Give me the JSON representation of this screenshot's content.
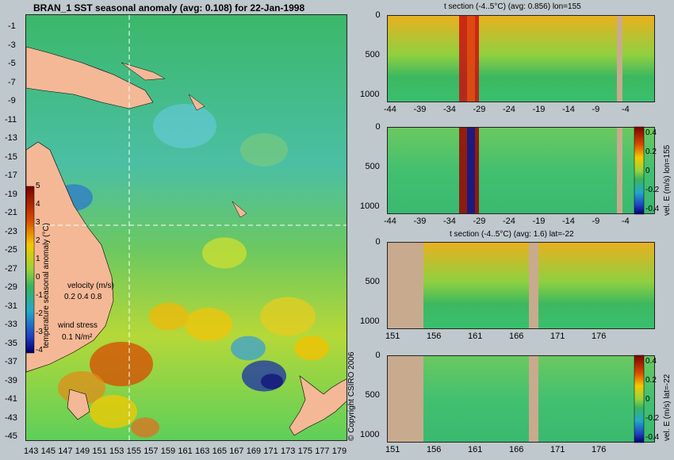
{
  "chart_data": [
    {
      "type": "heatmap",
      "title": "BRAN_1 SST seasonal anomaly (avg: 0.108) for 22-Jan-1998",
      "y_ticks": [
        "-1",
        "-3",
        "-5",
        "-7",
        "-9",
        "-11",
        "-13",
        "-15",
        "-17",
        "-19",
        "-21",
        "-23",
        "-25",
        "-27",
        "-29",
        "-31",
        "-33",
        "-35",
        "-37",
        "-39",
        "-41",
        "-43",
        "-45"
      ],
      "x_ticks": [
        "143",
        "145",
        "147",
        "149",
        "151",
        "153",
        "155",
        "157",
        "159",
        "161",
        "163",
        "165",
        "167",
        "169",
        "171",
        "173",
        "175",
        "177",
        "179"
      ],
      "xlim": [
        143,
        180
      ],
      "ylim": [
        -45,
        0
      ],
      "colorbar": {
        "label": "temperature seasonal anomaly (°C)",
        "ticks": [
          "5",
          "4",
          "3",
          "2",
          "1",
          "0",
          "-1",
          "-2",
          "-3",
          "-4"
        ],
        "range": [
          -4,
          5
        ]
      },
      "velocity_legend": {
        "label": "velocity (m/s)",
        "values": "0.2 0.4 0.8"
      },
      "wind_legend": {
        "label": "wind stress",
        "value": "0.1 N/m²"
      },
      "section_lines": {
        "lon": 155,
        "lat": -22
      }
    },
    {
      "type": "heatmap",
      "title": "t section (-4..5°C) (avg: 0.856) lon=155",
      "x_ticks": [
        "-44",
        "-39",
        "-34",
        "-29",
        "-24",
        "-19",
        "-14",
        "-9",
        "-4"
      ],
      "y_ticks": [
        "0",
        "500",
        "1000"
      ]
    },
    {
      "type": "heatmap",
      "title": "",
      "side_label": "vel. E (m/s) lon=155",
      "x_ticks": [
        "-44",
        "-39",
        "-34",
        "-29",
        "-24",
        "-19",
        "-14",
        "-9",
        "-4"
      ],
      "y_ticks": [
        "0",
        "500",
        "1000"
      ],
      "colorbar_ticks": [
        "0.4",
        "0.2",
        "0",
        "-0.2",
        "-0.4"
      ]
    },
    {
      "type": "heatmap",
      "title": "t section (-4..5°C) (avg: 1.6) lat=-22",
      "x_ticks": [
        "151",
        "156",
        "161",
        "166",
        "171",
        "176"
      ],
      "y_ticks": [
        "0",
        "500",
        "1000"
      ]
    },
    {
      "type": "heatmap",
      "title": "",
      "side_label": "vel. E (m/s) lat=-22",
      "x_ticks": [
        "151",
        "156",
        "161",
        "166",
        "171",
        "176"
      ],
      "y_ticks": [
        "0",
        "500",
        "1000"
      ],
      "colorbar_ticks": [
        "0.4",
        "0.2",
        "0",
        "-0.2",
        "-0.4"
      ]
    }
  ],
  "copyright": "© Copyright CSIRO 2006",
  "colors": {
    "land": "#f4b896",
    "section_land": "#c8ab8e",
    "background": "#bfc8cc"
  }
}
